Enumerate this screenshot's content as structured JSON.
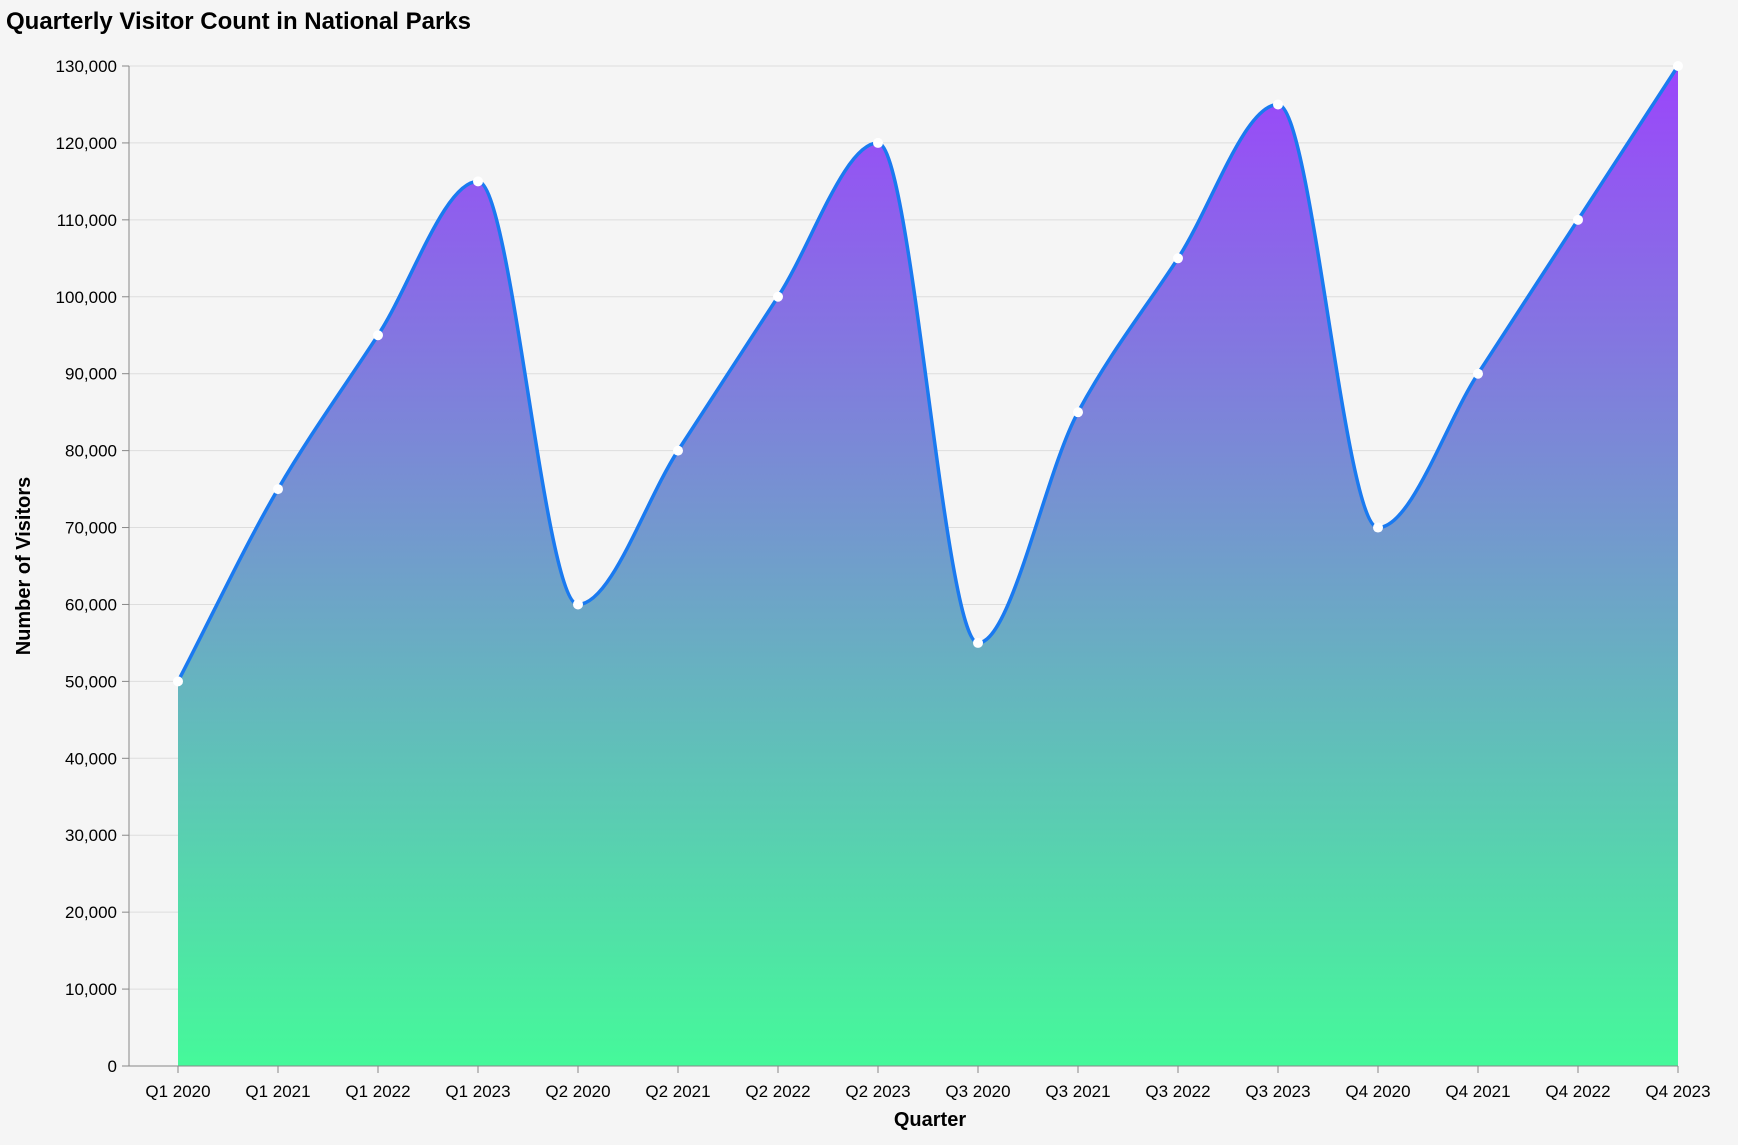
{
  "chart_data": {
    "type": "area",
    "title": "Quarterly Visitor Count in National Parks",
    "xlabel": "Quarter",
    "ylabel": "Number of Visitors",
    "categories": [
      "Q1 2020",
      "Q1 2021",
      "Q1 2022",
      "Q1 2023",
      "Q2 2020",
      "Q2 2021",
      "Q2 2022",
      "Q2 2023",
      "Q3 2020",
      "Q3 2021",
      "Q3 2022",
      "Q3 2023",
      "Q4 2020",
      "Q4 2021",
      "Q4 2022",
      "Q4 2023"
    ],
    "values": [
      50000,
      75000,
      95000,
      115000,
      60000,
      80000,
      100000,
      120000,
      55000,
      85000,
      105000,
      125000,
      70000,
      90000,
      110000,
      130000
    ],
    "ylim": [
      0,
      130000
    ],
    "yticks": [
      0,
      10000,
      20000,
      30000,
      40000,
      50000,
      60000,
      70000,
      80000,
      90000,
      100000,
      110000,
      120000,
      130000
    ],
    "ytick_labels": [
      "0",
      "10,000",
      "20,000",
      "30,000",
      "40,000",
      "50,000",
      "60,000",
      "70,000",
      "80,000",
      "90,000",
      "100,000",
      "110,000",
      "120,000",
      "130,000"
    ],
    "grid": true,
    "legend": "none",
    "colors": {
      "line": "#1a7af0",
      "fill_top": "#9b45fb",
      "fill_bottom": "#45f99a",
      "point_fill": "#ffffff",
      "background": "#f5f5f5",
      "grid": "#dddddd",
      "axis": "#888888"
    }
  }
}
